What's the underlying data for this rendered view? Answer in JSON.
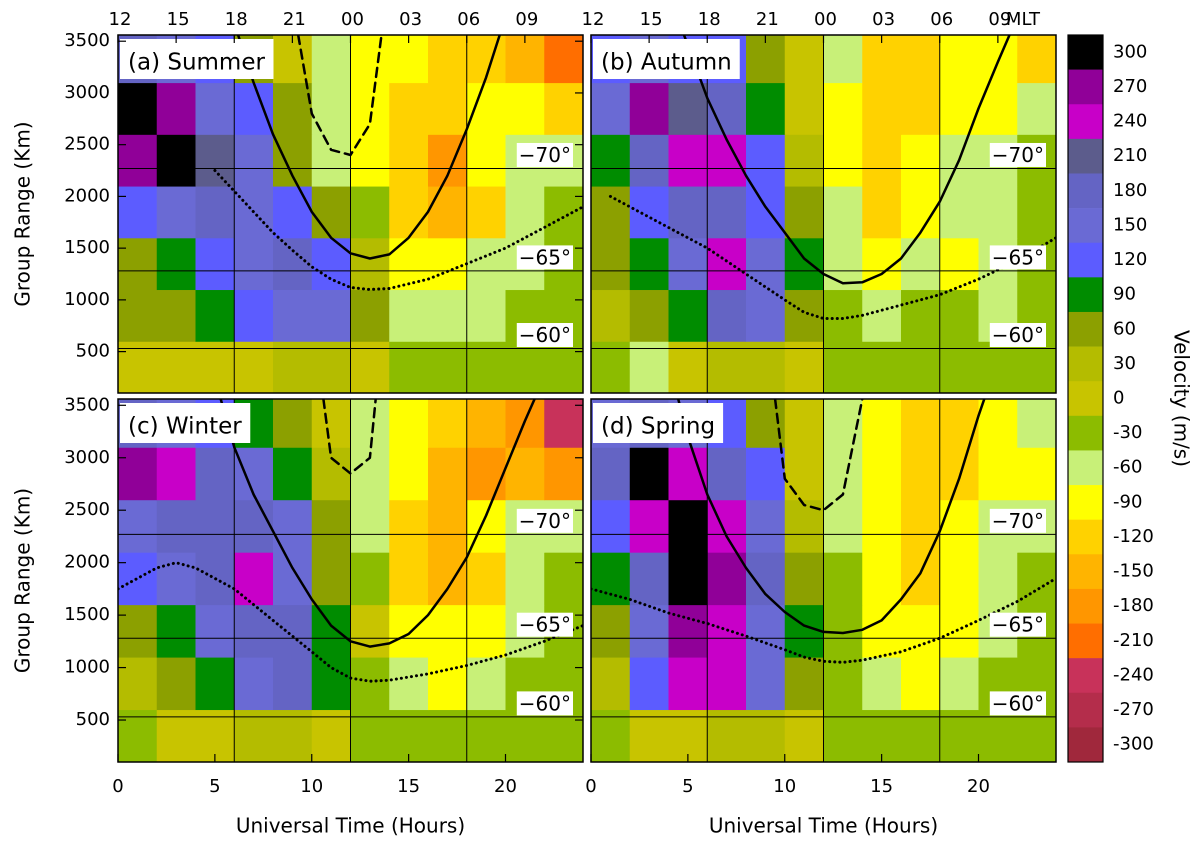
{
  "chart_data": [
    {
      "type": "heatmap",
      "title": "(a) Summer",
      "xlim": [
        0,
        24
      ],
      "ylim": [
        100,
        3560
      ],
      "x2ticks": [
        {
          "value": 0,
          "label": "12"
        },
        {
          "value": 3,
          "label": "15"
        },
        {
          "value": 6,
          "label": "18"
        },
        {
          "value": 9,
          "label": "21"
        },
        {
          "value": 12,
          "label": "00"
        },
        {
          "value": 15,
          "label": "03"
        },
        {
          "value": 18,
          "label": "06"
        },
        {
          "value": 21,
          "label": "09"
        }
      ],
      "yticks": [
        500,
        1000,
        1500,
        2000,
        2500,
        3000,
        3500
      ],
      "ylabel": "Group Range (Km)",
      "vlines": [
        6,
        12,
        18
      ],
      "lat_lines": [
        {
          "value": 2270,
          "label": "−70°"
        },
        {
          "value": 1280,
          "label": "−65°"
        },
        {
          "value": 530,
          "label": "−60°"
        }
      ],
      "xbins": [
        0,
        2,
        4,
        6,
        8,
        10,
        12,
        14,
        16,
        18,
        20,
        22,
        24
      ],
      "ybins": [
        100,
        600,
        1100,
        1600,
        2100,
        2600,
        3100,
        3560
      ],
      "z": [
        [
          0,
          0,
          0,
          0,
          30,
          30,
          0,
          -30,
          -30,
          -30,
          -30,
          -30
        ],
        [
          60,
          60,
          90,
          120,
          150,
          150,
          60,
          -60,
          -60,
          -60,
          -30,
          -30
        ],
        [
          60,
          90,
          120,
          150,
          180,
          120,
          30,
          -90,
          -90,
          -60,
          -60,
          -30
        ],
        [
          120,
          150,
          180,
          150,
          120,
          60,
          -30,
          -120,
          -150,
          -120,
          -60,
          -30
        ],
        [
          270,
          300,
          210,
          150,
          60,
          -60,
          -90,
          -120,
          -180,
          -90,
          -60,
          -60
        ],
        [
          300,
          270,
          150,
          120,
          60,
          -60,
          -90,
          -120,
          -120,
          -90,
          -90,
          -120
        ],
        [
          180,
          150,
          120,
          60,
          0,
          -60,
          -90,
          -90,
          -120,
          -120,
          -150,
          -210
        ]
      ],
      "curves": [
        {
          "style": "solid",
          "x": [
            6.2,
            7,
            8,
            9,
            10,
            11,
            12,
            13,
            14,
            15,
            16,
            17,
            18,
            19,
            19.7
          ],
          "y": [
            3560,
            3100,
            2600,
            2200,
            1850,
            1600,
            1450,
            1400,
            1440,
            1600,
            1850,
            2200,
            2650,
            3150,
            3560
          ]
        },
        {
          "style": "dashed",
          "x": [
            9.3,
            10,
            11,
            12,
            13,
            13.6
          ],
          "y": [
            3560,
            2800,
            2450,
            2400,
            2700,
            3560
          ]
        },
        {
          "style": "dotted",
          "x": [
            5,
            6,
            7,
            8,
            9,
            10,
            11,
            12,
            13,
            14,
            16,
            18,
            20,
            22,
            24
          ],
          "y": [
            2250,
            2050,
            1850,
            1650,
            1480,
            1320,
            1200,
            1120,
            1100,
            1110,
            1200,
            1350,
            1500,
            1700,
            1900
          ]
        }
      ]
    },
    {
      "type": "heatmap",
      "title": "(b) Autumn",
      "xlim": [
        0,
        24
      ],
      "ylim": [
        100,
        3560
      ],
      "x2ticks": [
        {
          "value": 0,
          "label": "12"
        },
        {
          "value": 3,
          "label": "15"
        },
        {
          "value": 6,
          "label": "18"
        },
        {
          "value": 9,
          "label": "21"
        },
        {
          "value": 12,
          "label": "00"
        },
        {
          "value": 15,
          "label": "03"
        },
        {
          "value": 18,
          "label": "06"
        },
        {
          "value": 21,
          "label": "09"
        }
      ],
      "x2label": "MLT",
      "vlines": [
        6,
        12,
        18
      ],
      "lat_lines": [
        {
          "value": 2270,
          "label": "−70°"
        },
        {
          "value": 1280,
          "label": "−65°"
        },
        {
          "value": 530,
          "label": "−60°"
        }
      ],
      "xbins": [
        0,
        2,
        4,
        6,
        8,
        10,
        12,
        14,
        16,
        18,
        20,
        22,
        24
      ],
      "ybins": [
        100,
        600,
        1100,
        1600,
        2100,
        2600,
        3100,
        3560
      ],
      "z": [
        [
          -30,
          -60,
          0,
          30,
          30,
          0,
          -30,
          -30,
          -30,
          -30,
          -30,
          -30
        ],
        [
          30,
          60,
          90,
          180,
          150,
          60,
          -30,
          -60,
          -30,
          -30,
          -60,
          -30
        ],
        [
          60,
          90,
          150,
          240,
          150,
          90,
          -60,
          -90,
          -60,
          -90,
          -60,
          -30
        ],
        [
          60,
          120,
          180,
          180,
          120,
          60,
          -60,
          -120,
          -90,
          -60,
          -60,
          -30
        ],
        [
          90,
          180,
          240,
          240,
          120,
          30,
          -90,
          -120,
          -90,
          -60,
          -60,
          -30
        ],
        [
          150,
          270,
          210,
          180,
          90,
          0,
          -90,
          -120,
          -120,
          -90,
          -90,
          -60
        ],
        [
          120,
          150,
          120,
          120,
          60,
          0,
          -60,
          -120,
          -120,
          -90,
          -90,
          -120
        ]
      ],
      "curves": [
        {
          "style": "solid",
          "x": [
            4.8,
            6,
            7,
            8,
            9,
            10,
            11,
            12,
            13,
            14,
            15,
            16,
            17,
            18,
            19,
            20,
            21,
            21.6
          ],
          "y": [
            3560,
            2950,
            2550,
            2200,
            1900,
            1650,
            1400,
            1250,
            1160,
            1170,
            1250,
            1400,
            1650,
            1950,
            2350,
            2850,
            3300,
            3560
          ]
        },
        {
          "style": "dotted",
          "x": [
            1,
            2,
            4,
            6,
            8,
            10,
            11,
            12,
            13,
            14,
            16,
            18,
            20,
            22,
            24
          ],
          "y": [
            2000,
            1900,
            1700,
            1500,
            1250,
            1000,
            880,
            820,
            820,
            850,
            950,
            1050,
            1200,
            1380,
            1600
          ]
        }
      ]
    },
    {
      "type": "heatmap",
      "title": "(c) Winter",
      "xlim": [
        0,
        24
      ],
      "ylim": [
        100,
        3560
      ],
      "xticks": [
        0,
        5,
        10,
        15,
        20
      ],
      "xlabel": "Universal Time (Hours)",
      "yticks": [
        500,
        1000,
        1500,
        2000,
        2500,
        3000,
        3500
      ],
      "ylabel": "Group Range (Km)",
      "vlines": [
        6,
        12,
        18
      ],
      "lat_lines": [
        {
          "value": 2270,
          "label": "−70°"
        },
        {
          "value": 1280,
          "label": "−65°"
        },
        {
          "value": 530,
          "label": "−60°"
        }
      ],
      "xbins": [
        0,
        2,
        4,
        6,
        8,
        10,
        12,
        14,
        16,
        18,
        20,
        22,
        24
      ],
      "ybins": [
        100,
        600,
        1100,
        1600,
        2100,
        2600,
        3100,
        3560
      ],
      "z": [
        [
          -30,
          0,
          0,
          30,
          30,
          0,
          -30,
          -30,
          -30,
          -30,
          -30,
          -30
        ],
        [
          30,
          60,
          90,
          150,
          180,
          90,
          -30,
          -60,
          -90,
          -60,
          -30,
          -30
        ],
        [
          60,
          90,
          150,
          180,
          180,
          90,
          0,
          -90,
          -90,
          -90,
          -60,
          -30
        ],
        [
          120,
          150,
          180,
          240,
          150,
          60,
          -30,
          -120,
          -150,
          -120,
          -60,
          -30
        ],
        [
          150,
          180,
          180,
          180,
          150,
          60,
          -60,
          -120,
          -150,
          -90,
          -60,
          -60
        ],
        [
          270,
          240,
          180,
          150,
          90,
          30,
          -60,
          -90,
          -150,
          -180,
          -150,
          -180
        ],
        [
          180,
          150,
          120,
          90,
          60,
          0,
          -60,
          -90,
          -120,
          -150,
          -180,
          -240
        ]
      ],
      "curves": [
        {
          "style": "solid",
          "x": [
            5.3,
            6,
            7,
            8,
            9,
            10,
            11,
            12,
            13,
            14,
            15,
            16,
            17,
            18,
            19,
            20,
            21,
            21.5
          ],
          "y": [
            3560,
            3100,
            2650,
            2300,
            1950,
            1650,
            1400,
            1250,
            1200,
            1230,
            1320,
            1500,
            1750,
            2050,
            2450,
            2900,
            3350,
            3560
          ]
        },
        {
          "style": "dashed",
          "x": [
            10.6,
            11,
            12,
            13,
            13.3
          ],
          "y": [
            3560,
            3000,
            2850,
            3000,
            3560
          ]
        },
        {
          "style": "dotted",
          "x": [
            0,
            1,
            2,
            3,
            4,
            6,
            8,
            10,
            11,
            12,
            13,
            14,
            16,
            18,
            20,
            22,
            24
          ],
          "y": [
            1750,
            1850,
            1950,
            2000,
            1950,
            1750,
            1450,
            1150,
            1000,
            900,
            870,
            880,
            940,
            1020,
            1120,
            1250,
            1400
          ]
        }
      ]
    },
    {
      "type": "heatmap",
      "title": "(d) Spring",
      "xlim": [
        0,
        24
      ],
      "ylim": [
        100,
        3560
      ],
      "xticks": [
        0,
        5,
        10,
        15,
        20
      ],
      "xlabel": "Universal Time (Hours)",
      "vlines": [
        6,
        12,
        18
      ],
      "lat_lines": [
        {
          "value": 2270,
          "label": "−70°"
        },
        {
          "value": 1280,
          "label": "−65°"
        },
        {
          "value": 530,
          "label": "−60°"
        }
      ],
      "xbins": [
        0,
        2,
        4,
        6,
        8,
        10,
        12,
        14,
        16,
        18,
        20,
        22,
        24
      ],
      "ybins": [
        100,
        600,
        1100,
        1600,
        2100,
        2600,
        3100,
        3560
      ],
      "z": [
        [
          -30,
          0,
          0,
          30,
          30,
          0,
          -30,
          -30,
          -30,
          -30,
          -30,
          -30
        ],
        [
          30,
          120,
          240,
          240,
          150,
          60,
          -30,
          -60,
          -90,
          -60,
          -30,
          -30
        ],
        [
          60,
          150,
          270,
          240,
          150,
          90,
          -30,
          -90,
          -90,
          -90,
          -60,
          -30
        ],
        [
          90,
          180,
          300,
          270,
          180,
          60,
          -30,
          -90,
          -120,
          -90,
          -60,
          -30
        ],
        [
          120,
          240,
          300,
          240,
          150,
          30,
          -60,
          -90,
          -120,
          -90,
          -60,
          -60
        ],
        [
          180,
          300,
          240,
          180,
          120,
          0,
          -60,
          -90,
          -120,
          -120,
          -90,
          -90
        ],
        [
          150,
          180,
          150,
          120,
          60,
          0,
          -60,
          -90,
          -120,
          -120,
          -90,
          -60
        ]
      ],
      "curves": [
        {
          "style": "solid",
          "x": [
            4.5,
            5,
            6,
            7,
            8,
            9,
            10,
            11,
            12,
            13,
            14,
            15,
            16,
            17,
            18,
            19,
            20,
            20.3
          ],
          "y": [
            3560,
            3200,
            2650,
            2250,
            1950,
            1700,
            1530,
            1400,
            1340,
            1330,
            1360,
            1450,
            1650,
            1900,
            2300,
            2800,
            3400,
            3560
          ]
        },
        {
          "style": "dashed",
          "x": [
            9.5,
            10,
            11,
            12,
            13,
            14
          ],
          "y": [
            3560,
            2800,
            2550,
            2500,
            2650,
            3560
          ]
        },
        {
          "style": "dotted",
          "x": [
            0,
            2,
            4,
            6,
            8,
            10,
            11,
            12,
            13,
            14,
            16,
            18,
            20,
            22,
            24
          ],
          "y": [
            1750,
            1650,
            1520,
            1420,
            1300,
            1170,
            1100,
            1060,
            1050,
            1070,
            1150,
            1280,
            1450,
            1630,
            1850
          ]
        }
      ]
    }
  ],
  "colorbar": {
    "label": "Velocity (m/s)",
    "levels": [
      300,
      270,
      240,
      210,
      180,
      150,
      120,
      90,
      60,
      30,
      0,
      -30,
      -60,
      -90,
      -120,
      -150,
      -180,
      -210,
      -240,
      -270,
      -300
    ],
    "colors": [
      "#000000",
      "#900098",
      "#c800c8",
      "#5c5c8c",
      "#6464c4",
      "#6a6ad4",
      "#5c5cff",
      "#008c00",
      "#8ca000",
      "#b4bc00",
      "#c8c400",
      "#8cbc00",
      "#c8f078",
      "#ffff00",
      "#ffd200",
      "#ffb400",
      "#ff9600",
      "#ff6e00",
      "#c8325a",
      "#b42d4b",
      "#a0283c"
    ]
  }
}
